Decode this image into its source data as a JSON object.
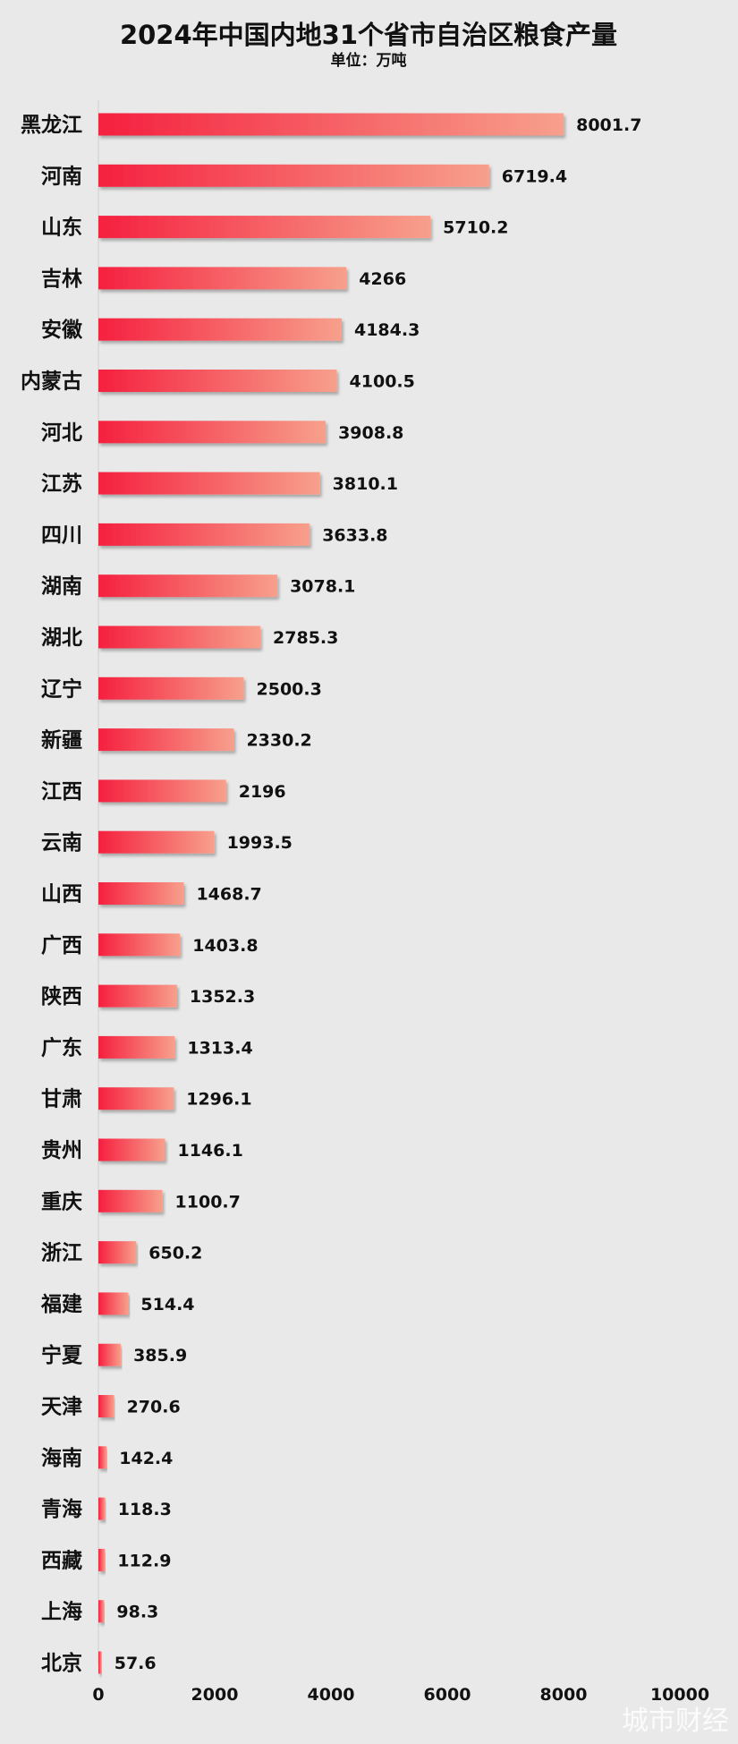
{
  "watermark": "城市财经",
  "colors": {
    "background": "#e9e9e9",
    "bar_start": "#f5203f",
    "bar_end": "#f7a08c",
    "text": "#111111"
  },
  "chart_data": {
    "type": "bar",
    "orientation": "horizontal",
    "title": "2024年中国内地31个省市自治区粮食产量",
    "subtitle": "单位：万吨",
    "categories": [
      "黑龙江",
      "河南",
      "山东",
      "吉林",
      "安徽",
      "内蒙古",
      "河北",
      "江苏",
      "四川",
      "湖南",
      "湖北",
      "辽宁",
      "新疆",
      "江西",
      "云南",
      "山西",
      "广西",
      "陕西",
      "广东",
      "甘肃",
      "贵州",
      "重庆",
      "浙江",
      "福建",
      "宁夏",
      "天津",
      "海南",
      "青海",
      "西藏",
      "上海",
      "北京"
    ],
    "values": [
      8001.7,
      6719.4,
      5710.2,
      4266,
      4184.3,
      4100.5,
      3908.8,
      3810.1,
      3633.8,
      3078.1,
      2785.3,
      2500.3,
      2330.2,
      2196,
      1993.5,
      1468.7,
      1403.8,
      1352.3,
      1313.4,
      1296.1,
      1146.1,
      1100.7,
      650.2,
      514.4,
      385.9,
      270.6,
      142.4,
      118.3,
      112.9,
      98.3,
      57.6
    ],
    "value_labels": [
      "8001.7",
      "6719.4",
      "5710.2",
      "4266",
      "4184.3",
      "4100.5",
      "3908.8",
      "3810.1",
      "3633.8",
      "3078.1",
      "2785.3",
      "2500.3",
      "2330.2",
      "2196",
      "1993.5",
      "1468.7",
      "1403.8",
      "1352.3",
      "1313.4",
      "1296.1",
      "1146.1",
      "1100.7",
      "650.2",
      "514.4",
      "385.9",
      "270.6",
      "142.4",
      "118.3",
      "112.9",
      "98.3",
      "57.6"
    ],
    "xticks": [
      0,
      2000,
      4000,
      6000,
      8000,
      10000
    ],
    "xtick_labels": [
      "0",
      "2000",
      "4000",
      "6000",
      "8000",
      "10000"
    ],
    "xlim": [
      0,
      10000
    ],
    "xlabel": "",
    "ylabel": "",
    "grid": false,
    "legend": "none"
  }
}
